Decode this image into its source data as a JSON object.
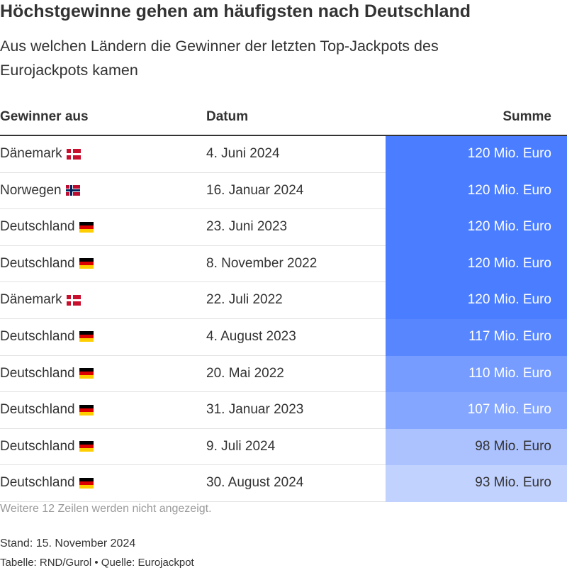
{
  "title": "Höchstgewinne gehen am häufigsten nach Deutschland",
  "subtitle": "Aus welchen Ländern die Gewinner der letzten Top-Jackpots des Eurojackpots kamen",
  "colors": {
    "scale_low": "#c2d2ff",
    "scale_high": "#4a7dff",
    "text_dark": "#333333",
    "text_light": "#ffffff"
  },
  "chart_data": {
    "type": "table",
    "columns": [
      "Gewinner aus",
      "Datum",
      "Summe"
    ],
    "value_min": 93,
    "value_max": 120,
    "rows": [
      {
        "country": "Dänemark",
        "flag": "dk-flag-icon",
        "date": "4. Juni 2024",
        "value": 120,
        "sum": "120 Mio. Euro"
      },
      {
        "country": "Norwegen",
        "flag": "no-flag-icon",
        "date": "16. Januar 2024",
        "value": 120,
        "sum": "120 Mio. Euro"
      },
      {
        "country": "Deutschland",
        "flag": "de-flag-icon",
        "date": "23. Juni 2023",
        "value": 120,
        "sum": "120 Mio. Euro"
      },
      {
        "country": "Deutschland",
        "flag": "de-flag-icon",
        "date": "8. November 2022",
        "value": 120,
        "sum": "120 Mio. Euro"
      },
      {
        "country": "Dänemark",
        "flag": "dk-flag-icon",
        "date": "22. Juli 2022",
        "value": 120,
        "sum": "120 Mio. Euro"
      },
      {
        "country": "Deutschland",
        "flag": "de-flag-icon",
        "date": "4. August 2023",
        "value": 117,
        "sum": "117 Mio. Euro"
      },
      {
        "country": "Deutschland",
        "flag": "de-flag-icon",
        "date": "20. Mai 2022",
        "value": 110,
        "sum": "110 Mio. Euro"
      },
      {
        "country": "Deutschland",
        "flag": "de-flag-icon",
        "date": "31. Januar 2023",
        "value": 107,
        "sum": "107 Mio. Euro"
      },
      {
        "country": "Deutschland",
        "flag": "de-flag-icon",
        "date": "9. Juli 2024",
        "value": 98,
        "sum": "98 Mio. Euro"
      },
      {
        "country": "Deutschland",
        "flag": "de-flag-icon",
        "date": "30. August 2024",
        "value": 93,
        "sum": "93 Mio. Euro"
      }
    ]
  },
  "footer": {
    "note": "Weitere 12 Zeilen werden nicht angezeigt.",
    "stand": "Stand: 15. November 2024",
    "source": "Tabelle: RND/Gurol • Quelle: Eurojackpot"
  }
}
